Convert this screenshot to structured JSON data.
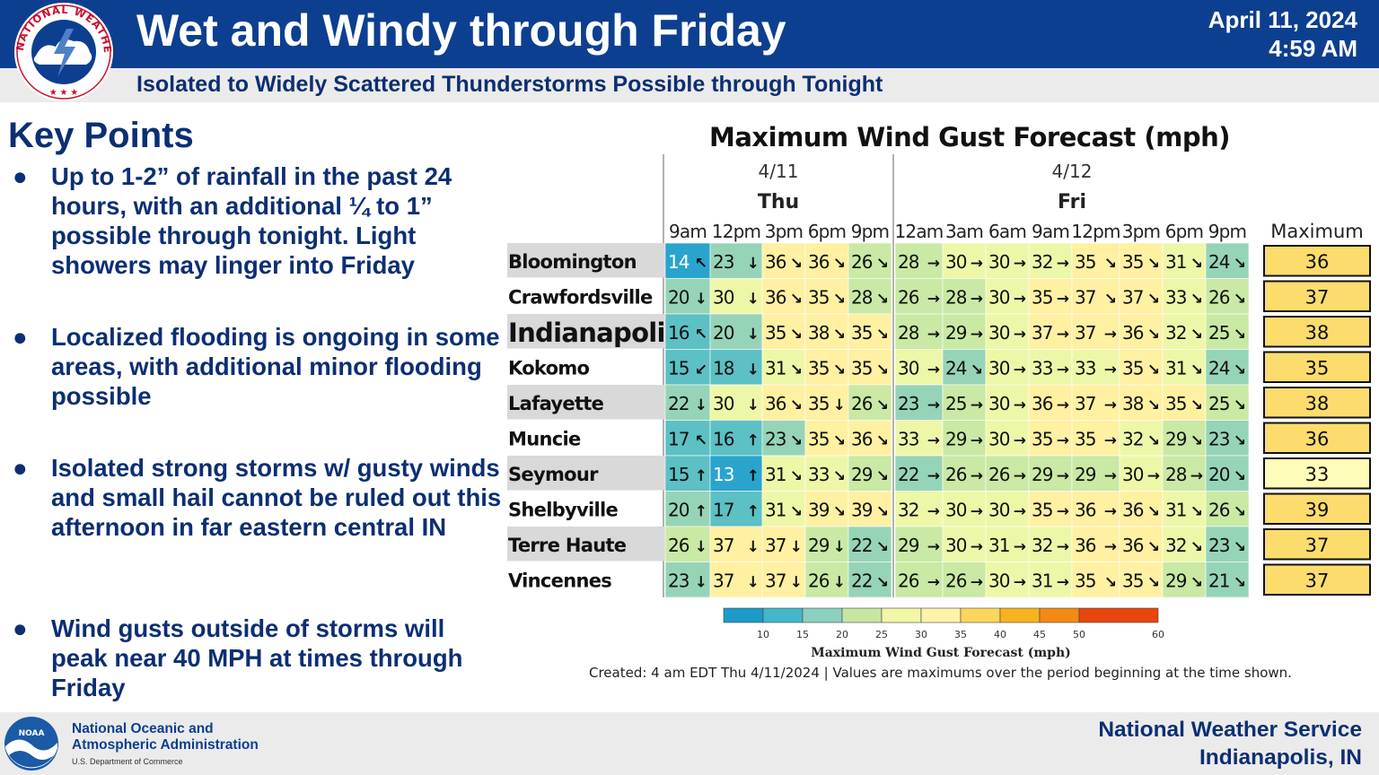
{
  "header": {
    "title": "Wet and Windy through Friday",
    "subtitle": "Isolated to Widely Scattered Thunderstorms Possible through Tonight",
    "date_line1": "April 11, 2024",
    "date_line2": "4:59 AM",
    "logo_text": "NATIONAL WEATHER SERVICE"
  },
  "key_points": {
    "title": "Key Points",
    "bullet_symbol": "●",
    "items": [
      "Up to 1-2” of rainfall in the past 24 hours, with an additional ¼ to 1” possible through tonight. Light showers may linger into Friday",
      "Localized flooding is ongoing in some areas, with additional minor flooding possible",
      "Isolated strong storms w/ gusty winds and small hail cannot be ruled out this afternoon in far eastern central IN",
      "Wind gusts outside of storms will peak near 40 MPH at times through Friday"
    ]
  },
  "chart_data": {
    "type": "table",
    "title": "Maximum Wind Gust Forecast (mph)",
    "days": [
      {
        "date": "4/11",
        "name": "Thu",
        "span": 5
      },
      {
        "date": "4/12",
        "name": "Fri",
        "span": 8
      }
    ],
    "times": [
      "9am",
      "12pm",
      "3pm",
      "6pm",
      "9pm",
      "12am",
      "3am",
      "6am",
      "9am",
      "12pm",
      "3pm",
      "6pm",
      "9pm"
    ],
    "max_header": "Maximum",
    "rows": [
      {
        "city": "Bloomington",
        "values": [
          14,
          23,
          36,
          36,
          26,
          28,
          30,
          30,
          32,
          35,
          35,
          31,
          24
        ],
        "arrows": [
          "↖",
          "↓",
          "↘",
          "↘",
          "↘",
          "→",
          "→",
          "→",
          "→",
          "↘",
          "↘",
          "↘",
          "↘"
        ],
        "max": 36
      },
      {
        "city": "Crawfordsville",
        "values": [
          20,
          30,
          36,
          35,
          28,
          26,
          28,
          30,
          35,
          37,
          37,
          33,
          26
        ],
        "arrows": [
          "↓",
          "↓",
          "↘",
          "↘",
          "↘",
          "→",
          "→",
          "→",
          "→",
          "↘",
          "↘",
          "↘",
          "↘"
        ],
        "max": 37
      },
      {
        "city": "Indianapolis",
        "values": [
          16,
          20,
          35,
          38,
          35,
          28,
          29,
          30,
          37,
          37,
          36,
          32,
          25
        ],
        "arrows": [
          "↖",
          "↓",
          "↘",
          "↘",
          "↘",
          "→",
          "→",
          "→",
          "→",
          "→",
          "↘",
          "↘",
          "↘"
        ],
        "max": 38
      },
      {
        "city": "Kokomo",
        "values": [
          15,
          18,
          31,
          35,
          35,
          30,
          24,
          30,
          33,
          33,
          35,
          31,
          24
        ],
        "arrows": [
          "↙",
          "↓",
          "↘",
          "↘",
          "↘",
          "→",
          "↘",
          "→",
          "→",
          "→",
          "↘",
          "↘",
          "↘"
        ],
        "max": 35
      },
      {
        "city": "Lafayette",
        "values": [
          22,
          30,
          36,
          35,
          26,
          23,
          25,
          30,
          36,
          37,
          38,
          35,
          25
        ],
        "arrows": [
          "↓",
          "↓",
          "↘",
          "↓",
          "↘",
          "→",
          "→",
          "→",
          "→",
          "→",
          "↘",
          "↘",
          "↘"
        ],
        "max": 38
      },
      {
        "city": "Muncie",
        "values": [
          17,
          16,
          23,
          35,
          36,
          33,
          29,
          30,
          35,
          35,
          32,
          29,
          23
        ],
        "arrows": [
          "↖",
          "↑",
          "↘",
          "↘",
          "↘",
          "→",
          "→",
          "→",
          "→",
          "→",
          "↘",
          "↘",
          "↘"
        ],
        "max": 36
      },
      {
        "city": "Seymour",
        "values": [
          15,
          13,
          31,
          33,
          29,
          22,
          26,
          26,
          29,
          29,
          30,
          28,
          20
        ],
        "arrows": [
          "↑",
          "↑",
          "↘",
          "↘",
          "↘",
          "→",
          "→",
          "→",
          "→",
          "→",
          "→",
          "→",
          "↘"
        ],
        "max": 33
      },
      {
        "city": "Shelbyville",
        "values": [
          20,
          17,
          31,
          39,
          39,
          32,
          30,
          30,
          35,
          36,
          36,
          31,
          26
        ],
        "arrows": [
          "↑",
          "↑",
          "↘",
          "↘",
          "↘",
          "→",
          "→",
          "→",
          "→",
          "→",
          "↘",
          "↘",
          "↘"
        ],
        "max": 39
      },
      {
        "city": "Terre Haute",
        "values": [
          26,
          37,
          37,
          29,
          22,
          29,
          30,
          31,
          32,
          36,
          36,
          32,
          23
        ],
        "arrows": [
          "↓",
          "↓",
          "↓",
          "↓",
          "↘",
          "→",
          "→",
          "→",
          "→",
          "→",
          "↘",
          "↘",
          "↘"
        ],
        "max": 37
      },
      {
        "city": "Vincennes",
        "values": [
          23,
          37,
          37,
          26,
          22,
          26,
          26,
          30,
          31,
          35,
          35,
          29,
          21
        ],
        "arrows": [
          "↓",
          "↓",
          "↓",
          "↓",
          "↘",
          "→",
          "→",
          "→",
          "→",
          "↘",
          "↘",
          "↘",
          "↘"
        ],
        "max": 37
      }
    ],
    "colorbar": {
      "ticks": [
        10,
        15,
        20,
        25,
        30,
        35,
        40,
        45,
        50,
        60
      ],
      "colors": [
        "#1c9ac8",
        "#43b7c8",
        "#8cd1bf",
        "#c6e6a2",
        "#f1f7a6",
        "#fff2ab",
        "#fcd55d",
        "#f7b21f",
        "#f28a14",
        "#e9460d"
      ],
      "label": "Maximum Wind Gust Forecast (mph)"
    },
    "created_note": "Created: 4 am EDT Thu 4/11/2024  |  Values are maximums over the period beginning at the time shown."
  },
  "footer": {
    "noaa_line1": "National Oceanic and",
    "noaa_line2": "Atmospheric Administration",
    "noaa_dept": "U.S. Department of Commerce",
    "noaa_logo_text": "NOAA",
    "nws_line1": "National Weather Service",
    "nws_line2": "Indianapolis, IN"
  }
}
